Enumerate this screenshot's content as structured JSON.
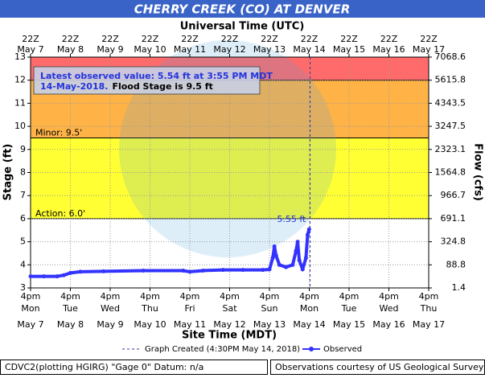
{
  "chart_data": {
    "type": "line",
    "title": "CHERRY CREEK (CO) AT DENVER",
    "top_axis_label": "Universal Time (UTC)",
    "xlabel": "Site Time (MDT)",
    "ylabel": "Stage (ft)",
    "y2label": "Flow (cfs)",
    "xlim": [
      "2018-05-07T16:00",
      "2018-05-17T16:00"
    ],
    "xticks": [
      {
        "value": "2018-05-07T16:00",
        "time": "4pm",
        "weekday": "Mon",
        "date": "May 7",
        "utc": "22Z"
      },
      {
        "value": "2018-05-08T16:00",
        "time": "4pm",
        "weekday": "Tue",
        "date": "May 8",
        "utc": "22Z"
      },
      {
        "value": "2018-05-09T16:00",
        "time": "4pm",
        "weekday": "Wed",
        "date": "May 9",
        "utc": "22Z"
      },
      {
        "value": "2018-05-10T16:00",
        "time": "4pm",
        "weekday": "Thu",
        "date": "May 10",
        "utc": "22Z"
      },
      {
        "value": "2018-05-11T16:00",
        "time": "4pm",
        "weekday": "Fri",
        "date": "May 11",
        "utc": "22Z"
      },
      {
        "value": "2018-05-12T16:00",
        "time": "4pm",
        "weekday": "Sat",
        "date": "May 12",
        "utc": "22Z"
      },
      {
        "value": "2018-05-13T16:00",
        "time": "4pm",
        "weekday": "Sun",
        "date": "May 13",
        "utc": "22Z"
      },
      {
        "value": "2018-05-14T16:00",
        "time": "4pm",
        "weekday": "Mon",
        "date": "May 14",
        "utc": "22Z"
      },
      {
        "value": "2018-05-15T16:00",
        "time": "4pm",
        "weekday": "Tue",
        "date": "May 15",
        "utc": "22Z"
      },
      {
        "value": "2018-05-16T16:00",
        "time": "4pm",
        "weekday": "Wed",
        "date": "May 16",
        "utc": "22Z"
      },
      {
        "value": "2018-05-17T16:00",
        "time": "4pm",
        "weekday": "Thu",
        "date": "May 17",
        "utc": "22Z"
      }
    ],
    "ylim": [
      3,
      13
    ],
    "yticks": [
      3,
      4,
      5,
      6,
      7,
      8,
      9,
      10,
      11,
      12,
      13
    ],
    "flow_axis": {
      "stage": [
        3,
        4,
        5,
        6,
        7,
        8,
        9,
        10,
        11,
        12,
        13
      ],
      "flow": [
        1.4,
        88.8,
        324.8,
        691.1,
        966.7,
        1564.8,
        2323.1,
        3247.5,
        4343.5,
        5615.8,
        7068.6
      ]
    },
    "grid": true,
    "bands": [
      {
        "from": 6,
        "to": 9.5,
        "color": "#ffff33"
      },
      {
        "from": 9.5,
        "to": 12,
        "color": "#ffb347"
      },
      {
        "from": 12,
        "to": 13,
        "color": "#ff6b6b"
      }
    ],
    "thresholds": [
      {
        "label": "Minor: 9.5'",
        "value": 9.5
      },
      {
        "label": "Action: 6.0'",
        "value": 6
      }
    ],
    "info_box": {
      "line1": "Latest observed value: 5.54 ft at 3:55 PM MDT",
      "date": "14-May-2018.",
      "flood_stage": "Flood Stage is 9.5 ft"
    },
    "peak_label": "5.55 ft",
    "graph_created": {
      "label": "Graph Created (4:30PM May 14, 2018)",
      "x": "2018-05-14T16:30"
    },
    "series": [
      {
        "name": "Observed",
        "color": "#3333ff",
        "x": [
          "2018-05-07T16:00",
          "2018-05-08T00:00",
          "2018-05-08T08:00",
          "2018-05-08T12:00",
          "2018-05-08T16:00",
          "2018-05-08T22:00",
          "2018-05-09T12:00",
          "2018-05-10T12:00",
          "2018-05-11T12:00",
          "2018-05-11T16:00",
          "2018-05-12T00:00",
          "2018-05-12T12:00",
          "2018-05-13T00:00",
          "2018-05-13T12:00",
          "2018-05-13T16:00",
          "2018-05-13T18:00",
          "2018-05-13T19:00",
          "2018-05-13T20:00",
          "2018-05-13T22:00",
          "2018-05-14T02:00",
          "2018-05-14T06:00",
          "2018-05-14T08:00",
          "2018-05-14T09:00",
          "2018-05-14T10:00",
          "2018-05-14T12:00",
          "2018-05-14T14:00",
          "2018-05-14T15:00",
          "2018-05-14T15:55"
        ],
        "values": [
          3.5,
          3.5,
          3.5,
          3.55,
          3.65,
          3.7,
          3.72,
          3.75,
          3.75,
          3.7,
          3.75,
          3.78,
          3.78,
          3.78,
          3.8,
          4.3,
          4.8,
          4.4,
          4.0,
          3.9,
          4.0,
          4.6,
          5.0,
          4.2,
          3.8,
          4.3,
          5.3,
          5.54
        ]
      }
    ],
    "footer_left": "CDVC2(plotting HGIRG) \"Gage 0\" Datum: n/a",
    "footer_right": "Observations courtesy of US Geological Survey"
  }
}
